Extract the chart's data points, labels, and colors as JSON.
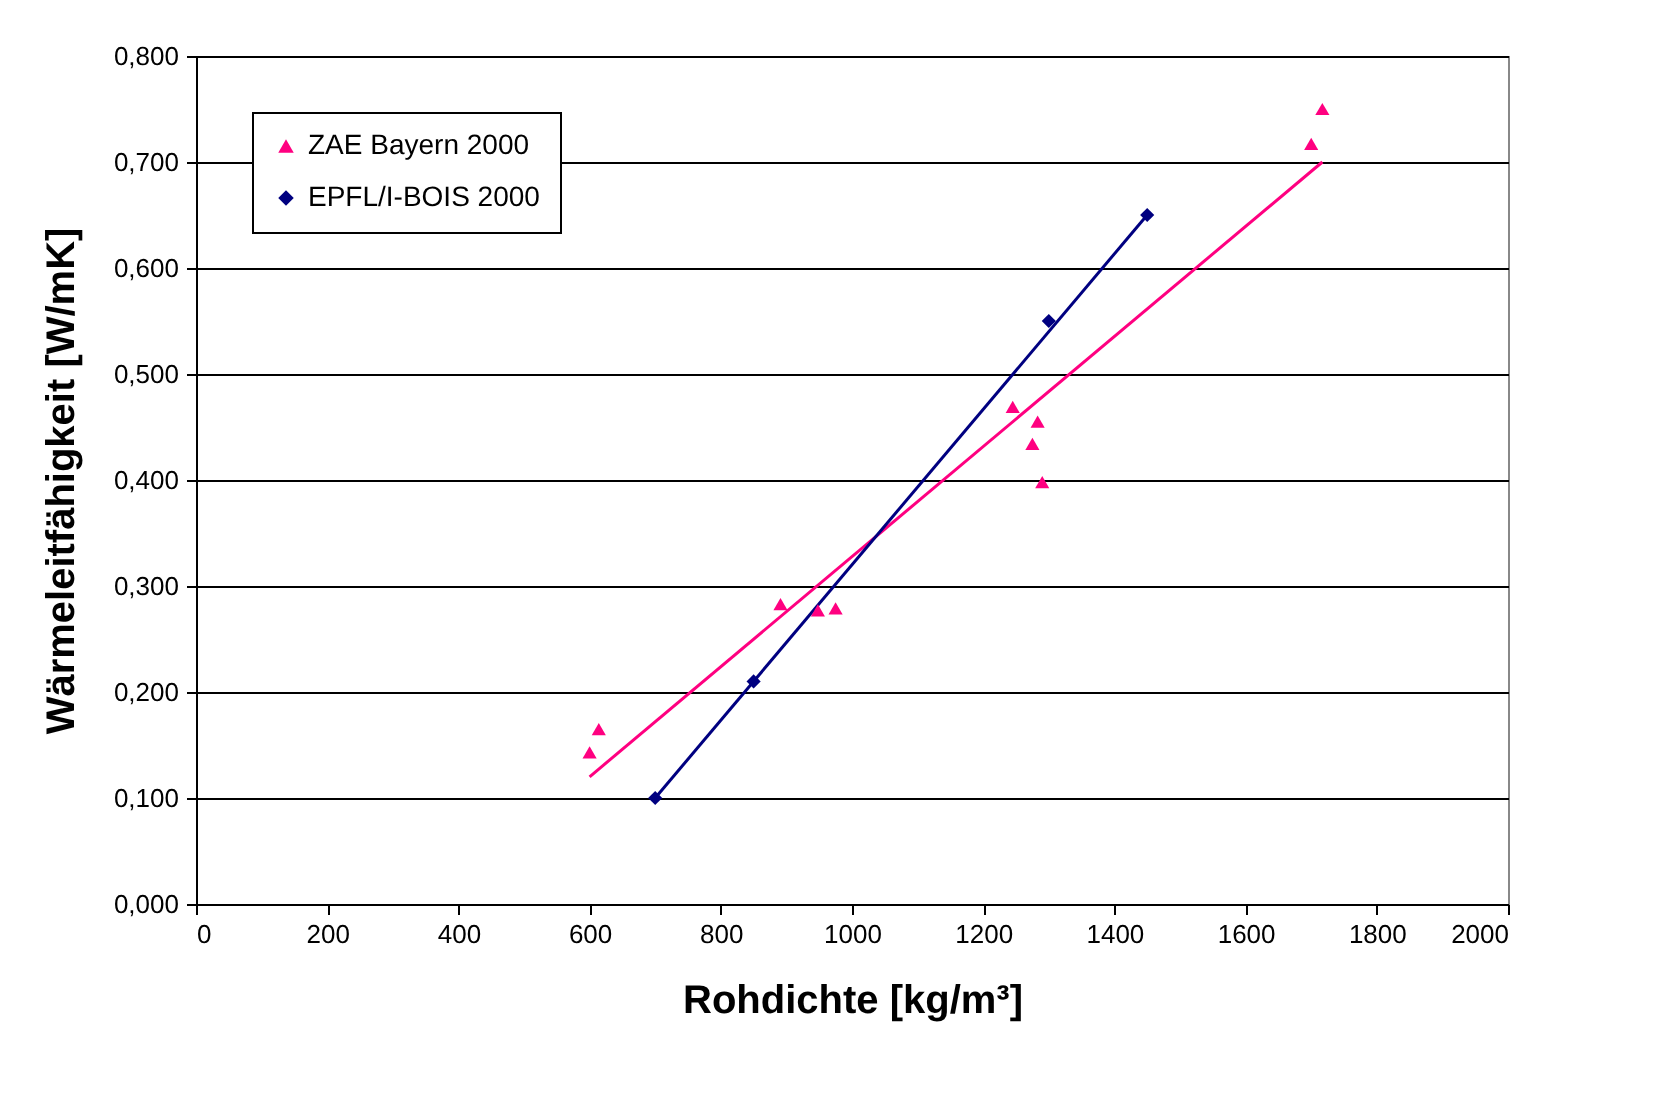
{
  "chart_data": {
    "type": "scatter",
    "xlabel": "Rohdichte [kg/m³]",
    "ylabel": "Wärmeleitfähigkeit [W/mK]",
    "xlim": [
      0,
      2000
    ],
    "xticks": [
      0,
      200,
      400,
      600,
      800,
      1000,
      1200,
      1400,
      1600,
      1800,
      2000
    ],
    "ylim": [
      0,
      0.8
    ],
    "yticks": [
      {
        "value": 0,
        "label": "0,000"
      },
      {
        "value": 0.1,
        "label": "0,100"
      },
      {
        "value": 0.2,
        "label": "0,200"
      },
      {
        "value": 0.3,
        "label": "0,300"
      },
      {
        "value": 0.4,
        "label": "0,400"
      },
      {
        "value": 0.5,
        "label": "0,500"
      },
      {
        "value": 0.6,
        "label": "0,600"
      },
      {
        "value": 0.7,
        "label": "0,700"
      },
      {
        "value": 0.8,
        "label": "0,800"
      }
    ],
    "grid": "y",
    "legend": "top left",
    "series": [
      {
        "name": "ZAE Bayern 2000",
        "marker": "triangle",
        "color": "#ff0080",
        "x": [
          600,
          614,
          891,
          948,
          975,
          1245,
          1283,
          1275,
          1290,
          1700,
          1717
        ],
        "values": [
          0.143,
          0.165,
          0.283,
          0.277,
          0.279,
          0.469,
          0.455,
          0.434,
          0.398,
          0.717,
          0.75
        ]
      },
      {
        "name": "EPFL/I-BOIS 2000",
        "marker": "diamond",
        "color": "#000080",
        "x": [
          700,
          850,
          1300,
          1450
        ],
        "values": [
          0.1,
          0.21,
          0.55,
          0.65
        ]
      },
      {
        "type": "line",
        "color": "#ff0080",
        "x": [
          600,
          1717
        ],
        "values": [
          0.12,
          0.7
        ]
      },
      {
        "type": "line",
        "color": "#000080",
        "x": [
          700,
          1450
        ],
        "values": [
          0.1,
          0.65
        ]
      }
    ]
  }
}
